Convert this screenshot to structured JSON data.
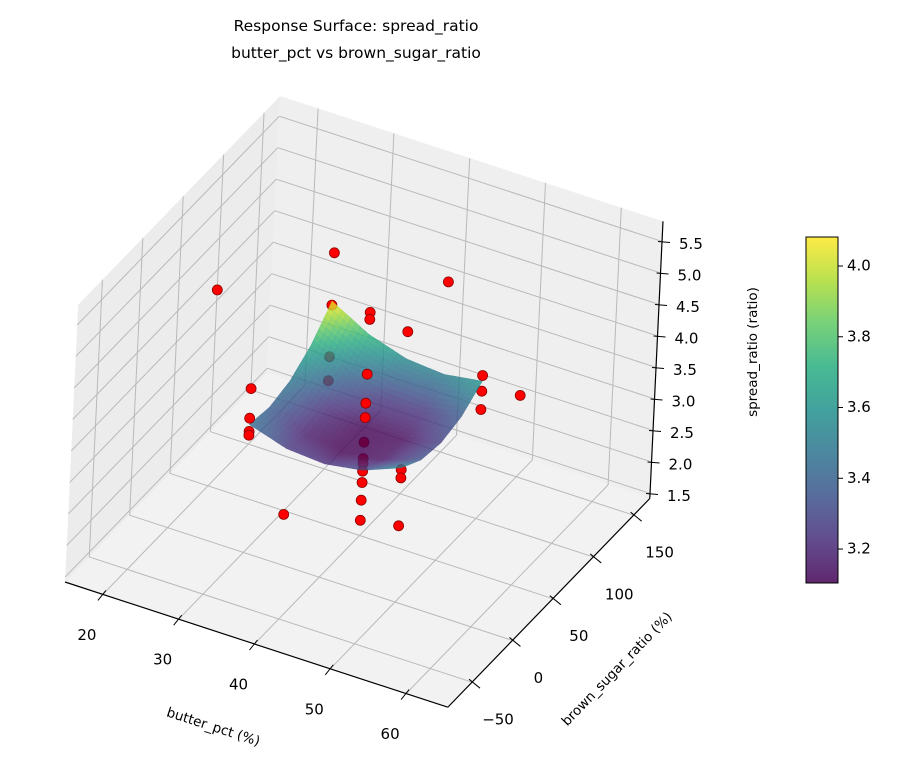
{
  "chart_data": {
    "type": "surface3d+scatter3d",
    "title": "Response Surface: spread_ratio",
    "subtitle": "butter_pct vs brown_sugar_ratio",
    "xlabel": "butter_pct (%)",
    "ylabel": "brown_sugar_ratio (%)",
    "zlabel": "spread_ratio (ratio)",
    "xlim": [
      15,
      65.5
    ],
    "ylim": [
      -80,
      170
    ],
    "zlim": [
      1.42,
      5.82
    ],
    "xticks": [
      20,
      30,
      40,
      50,
      60
    ],
    "yticks": [
      -50,
      0,
      50,
      100,
      150
    ],
    "zticks": [
      "1.5",
      "2.0",
      "2.5",
      "3.0",
      "3.5",
      "4.0",
      "4.5",
      "5.0",
      "5.5"
    ],
    "grid": true,
    "view": {
      "elev": 30,
      "azim": -60
    },
    "surface": {
      "colormap": "viridis",
      "alpha": 0.8,
      "x": [
        30,
        35,
        40,
        45,
        50
      ],
      "y": [
        0,
        25,
        50,
        75,
        100
      ],
      "z": [
        [
          3.45,
          3.39,
          3.475,
          3.705,
          4.08
        ],
        [
          3.265,
          3.169,
          3.218,
          3.411,
          3.75
        ],
        [
          3.22,
          3.088,
          3.1,
          3.258,
          3.56
        ],
        [
          3.315,
          3.146,
          3.123,
          3.244,
          3.51
        ],
        [
          3.55,
          3.345,
          3.285,
          3.37,
          3.6
        ]
      ]
    },
    "scatter": {
      "color": "#ff0000",
      "edgecolor": "#8b0000",
      "points": [
        [
          40,
          50,
          4.96
        ],
        [
          40,
          50,
          4.85
        ],
        [
          40,
          50,
          3.98
        ],
        [
          40,
          50,
          3.52
        ],
        [
          40,
          50,
          3.29
        ],
        [
          40,
          50,
          2.9
        ],
        [
          40,
          50,
          2.64
        ],
        [
          40,
          50,
          2.56
        ],
        [
          40,
          50,
          2.44
        ],
        [
          40,
          50,
          2.26
        ],
        [
          40,
          50,
          1.98
        ],
        [
          40,
          50,
          1.66
        ],
        [
          30,
          0,
          4.02
        ],
        [
          30,
          0,
          3.55
        ],
        [
          30,
          0,
          3.34
        ],
        [
          30,
          0,
          3.28
        ],
        [
          30,
          100,
          4.85
        ],
        [
          30,
          100,
          4.02
        ],
        [
          30,
          100,
          3.2
        ],
        [
          30,
          100,
          2.82
        ],
        [
          50,
          0,
          5.71
        ],
        [
          50,
          0,
          3.52
        ],
        [
          50,
          0,
          3.39
        ],
        [
          50,
          0,
          2.63
        ],
        [
          50,
          100,
          3.69
        ],
        [
          50,
          100,
          3.44
        ],
        [
          50,
          100,
          3.15
        ],
        [
          20,
          50,
          4.53
        ],
        [
          60,
          50,
          4.43
        ],
        [
          40,
          -50,
          3.08
        ],
        [
          40,
          150,
          4.12
        ]
      ]
    },
    "colorbar": {
      "range": [
        3.104,
        4.082
      ],
      "ticks": [
        "3.2",
        "3.4",
        "3.6",
        "3.8",
        "4.0"
      ]
    }
  }
}
